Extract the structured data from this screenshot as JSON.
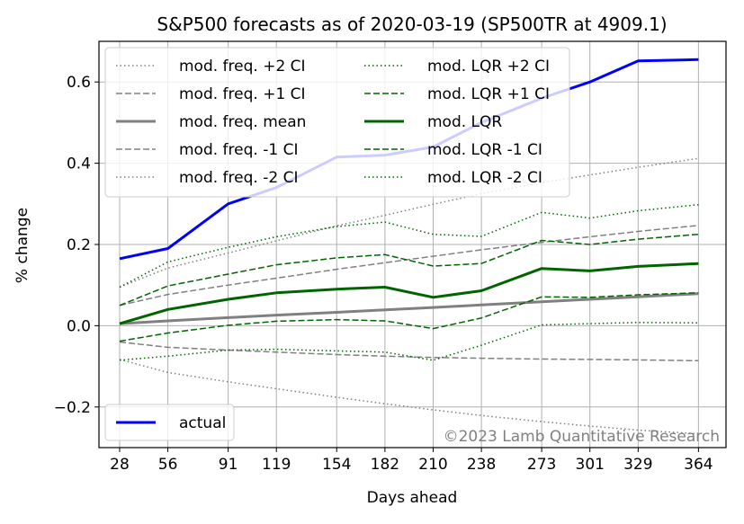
{
  "chart_data": {
    "type": "line",
    "title": "S&P500 forecasts as of 2020-03-19 (SP500TR at 4909.1)",
    "xlabel": "Days ahead",
    "ylabel": "% change",
    "xlim": [
      16,
      380
    ],
    "ylim": [
      -0.3,
      0.7
    ],
    "grid": true,
    "x": [
      28,
      56,
      91,
      119,
      154,
      182,
      210,
      238,
      273,
      301,
      329,
      364
    ],
    "xticks": [
      "28",
      "56",
      "91",
      "119",
      "154",
      "182",
      "210",
      "238",
      "273",
      "301",
      "329",
      "364"
    ],
    "yticks": [
      -0.2,
      0.0,
      0.2,
      0.4,
      0.6
    ],
    "ytick_labels": [
      "−0.2",
      "0.0",
      "0.2",
      "0.4",
      "0.6"
    ],
    "series": [
      {
        "name": "mod. freq. +2 CI",
        "color": "#808080",
        "style": "dotted",
        "width": 1.5,
        "values": [
          0.095,
          0.142,
          0.179,
          0.209,
          0.246,
          0.272,
          0.299,
          0.325,
          0.352,
          0.371,
          0.39,
          0.412
        ]
      },
      {
        "name": "mod. freq. +1 CI",
        "color": "#808080",
        "style": "dashed",
        "width": 1.5,
        "values": [
          0.05,
          0.077,
          0.1,
          0.117,
          0.139,
          0.155,
          0.171,
          0.187,
          0.205,
          0.219,
          0.232,
          0.247
        ]
      },
      {
        "name": "mod. freq. mean",
        "color": "#808080",
        "style": "solid",
        "width": 3,
        "values": [
          0.005,
          0.012,
          0.02,
          0.026,
          0.033,
          0.039,
          0.045,
          0.051,
          0.059,
          0.065,
          0.071,
          0.079
        ]
      },
      {
        "name": "mod. freq. -1 CI",
        "color": "#808080",
        "style": "dashed",
        "width": 1.5,
        "values": [
          -0.04,
          -0.053,
          -0.06,
          -0.065,
          -0.071,
          -0.075,
          -0.078,
          -0.08,
          -0.082,
          -0.083,
          -0.084,
          -0.086
        ]
      },
      {
        "name": "mod. freq. -2 CI",
        "color": "#808080",
        "style": "dotted",
        "width": 1.5,
        "values": [
          -0.083,
          -0.115,
          -0.138,
          -0.155,
          -0.176,
          -0.192,
          -0.207,
          -0.221,
          -0.236,
          -0.247,
          -0.257,
          -0.266
        ]
      },
      {
        "name": "mod. LQR +2 CI",
        "color": "#006400",
        "style": "dotted",
        "width": 1.5,
        "values": [
          0.095,
          0.157,
          0.193,
          0.219,
          0.244,
          0.255,
          0.225,
          0.22,
          0.279,
          0.265,
          0.283,
          0.298
        ]
      },
      {
        "name": "mod. LQR +1 CI",
        "color": "#006400",
        "style": "dashed",
        "width": 1.5,
        "values": [
          0.05,
          0.098,
          0.127,
          0.15,
          0.167,
          0.175,
          0.147,
          0.153,
          0.21,
          0.2,
          0.213,
          0.225
        ]
      },
      {
        "name": "mod. LQR",
        "color": "#006400",
        "style": "solid",
        "width": 3,
        "values": [
          0.005,
          0.04,
          0.065,
          0.081,
          0.09,
          0.095,
          0.07,
          0.086,
          0.141,
          0.135,
          0.146,
          0.153
        ]
      },
      {
        "name": "mod. LQR -1 CI",
        "color": "#006400",
        "style": "dashed",
        "width": 1.5,
        "values": [
          -0.038,
          -0.018,
          0.001,
          0.011,
          0.015,
          0.012,
          -0.007,
          0.019,
          0.071,
          0.07,
          0.076,
          0.081
        ]
      },
      {
        "name": "mod. LQR -2 CI",
        "color": "#006400",
        "style": "dotted",
        "width": 1.5,
        "values": [
          -0.085,
          -0.075,
          -0.06,
          -0.058,
          -0.062,
          -0.065,
          -0.085,
          -0.048,
          0.002,
          0.005,
          0.008,
          0.007
        ]
      },
      {
        "name": "actual",
        "color": "#0000ff",
        "style": "solid",
        "width": 3,
        "values": [
          0.165,
          0.19,
          0.3,
          0.34,
          0.415,
          0.42,
          0.44,
          0.5,
          0.56,
          0.6,
          0.652,
          0.655
        ]
      }
    ],
    "legends": [
      {
        "placement": "upper-left",
        "columns": 2,
        "entries": [
          "mod. freq. +2 CI",
          "mod. freq. +1 CI",
          "mod. freq. mean",
          "mod. freq. -1 CI",
          "mod. freq. -2 CI",
          "mod. LQR +2 CI",
          "mod. LQR +1 CI",
          "mod. LQR",
          "mod. LQR -1 CI",
          "mod. LQR -2 CI"
        ]
      },
      {
        "placement": "lower-left",
        "columns": 1,
        "entries": [
          "actual"
        ]
      }
    ],
    "watermark": "©2023 Lamb Quantitative Research"
  }
}
